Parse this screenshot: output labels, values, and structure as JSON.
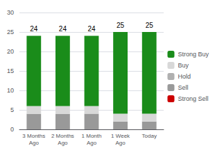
{
  "chart_data": {
    "type": "bar",
    "categories": [
      "3 Months\nAgo",
      "2 Months\nAgo",
      "1 Month\nAgo",
      "1 Week\nAgo",
      "Today"
    ],
    "series": [
      {
        "name": "Strong Buy",
        "color": "#1a8c1a",
        "values": [
          18,
          18,
          18,
          21,
          21
        ]
      },
      {
        "name": "Buy",
        "color": "#d8d8d8",
        "values": [
          2,
          2,
          2,
          2,
          2
        ]
      },
      {
        "name": "Hold",
        "color": "#b0b0b0",
        "values": [
          0,
          0,
          0,
          0,
          0
        ]
      },
      {
        "name": "Sell",
        "color": "#999999",
        "values": [
          4,
          4,
          4,
          2,
          2
        ]
      },
      {
        "name": "Strong Sell",
        "color": "#cc0000",
        "values": [
          0,
          0,
          0,
          0,
          0
        ]
      }
    ],
    "totals": [
      24,
      24,
      24,
      25,
      25
    ],
    "stacked": true,
    "ylim": [
      0,
      30
    ],
    "yticks": [
      0,
      5,
      10,
      15,
      20,
      25,
      30
    ],
    "grid": true,
    "legend": "right"
  }
}
